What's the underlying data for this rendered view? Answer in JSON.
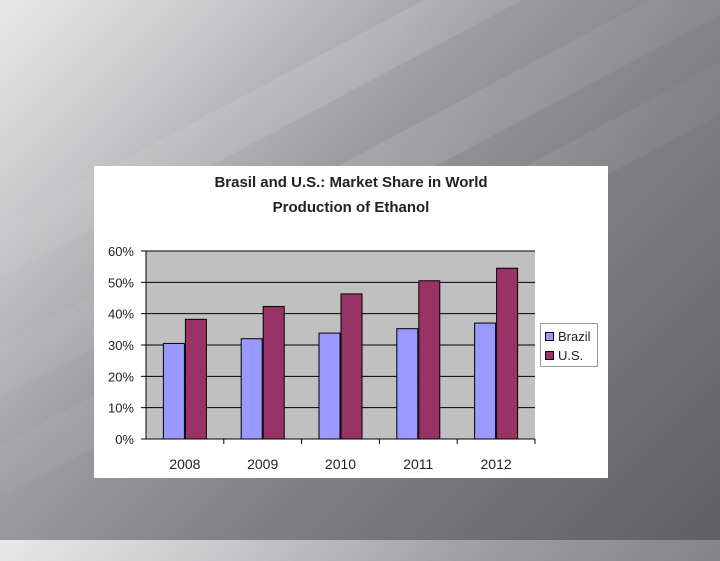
{
  "colors": {
    "brazil": "#9999ff",
    "us": "#993366",
    "plot_bg": "#c0c0c0",
    "grid": "#000000"
  },
  "chart_data": {
    "type": "bar",
    "title": [
      "Brasil and U.S.: Market Share in World",
      "Production of Ethanol"
    ],
    "categories": [
      "2008",
      "2009",
      "2010",
      "2011",
      "2012"
    ],
    "series": [
      {
        "name": "Brazil",
        "values": [
          30.5,
          32,
          33.8,
          35.2,
          37
        ]
      },
      {
        "name": "U.S.",
        "values": [
          38.2,
          42.3,
          46.3,
          50.5,
          54.5
        ]
      }
    ],
    "ylim": [
      0,
      60
    ],
    "yticks": [
      "0%",
      "10%",
      "20%",
      "30%",
      "40%",
      "50%",
      "60%"
    ],
    "ytick_values": [
      0,
      10,
      20,
      30,
      40,
      50,
      60
    ],
    "grid": true,
    "legend": "right"
  }
}
